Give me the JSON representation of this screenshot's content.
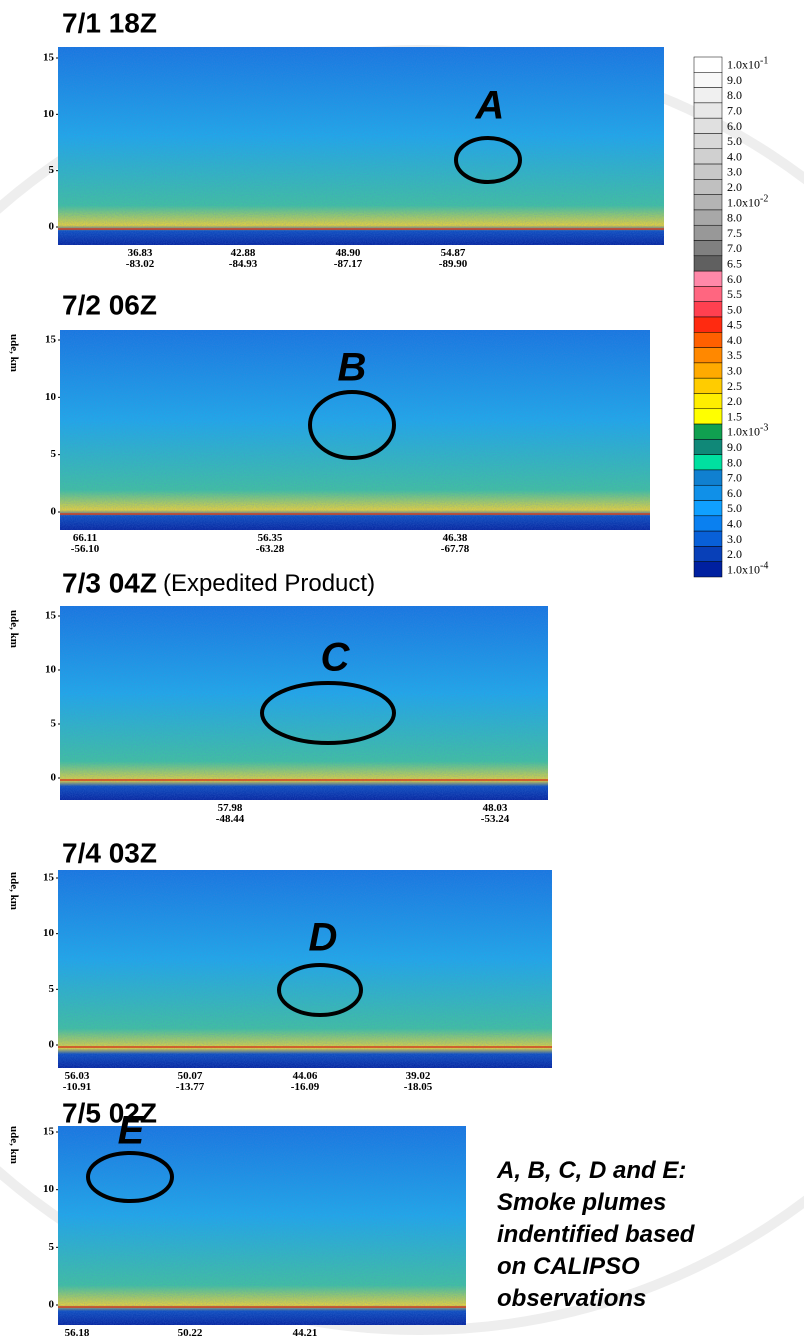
{
  "panels": [
    {
      "title": "7/1 18Z",
      "yticks": [
        0,
        5,
        10,
        15
      ],
      "xticks": [
        {
          "lat": "36.83",
          "lon": "-83.02"
        },
        {
          "lat": "42.88",
          "lon": "-84.93"
        },
        {
          "lat": "48.90",
          "lon": "-87.17"
        },
        {
          "lat": "54.87",
          "lon": "-89.90"
        }
      ],
      "plume": "A"
    },
    {
      "title": "7/2 06Z",
      "axis_label": "ude, km",
      "yticks": [
        0,
        5,
        10,
        15
      ],
      "xticks": [
        {
          "lat": "66.11",
          "lon": "-56.10"
        },
        {
          "lat": "56.35",
          "lon": "-63.28"
        },
        {
          "lat": "46.38",
          "lon": "-67.78"
        }
      ],
      "plume": "B"
    },
    {
      "title": "7/3 04Z",
      "title_note": "(Expedited Product)",
      "axis_label": "ude, km",
      "yticks": [
        0,
        5,
        10,
        15
      ],
      "xticks": [
        {
          "lat": "57.98",
          "lon": "-48.44"
        },
        {
          "lat": "48.03",
          "lon": "-53.24"
        }
      ],
      "plume": "C"
    },
    {
      "title": "7/4 03Z",
      "axis_label": "ude, km",
      "yticks": [
        0,
        5,
        10,
        15
      ],
      "xticks": [
        {
          "lat": "56.03",
          "lon": "-10.91"
        },
        {
          "lat": "50.07",
          "lon": "-13.77"
        },
        {
          "lat": "44.06",
          "lon": "-16.09"
        },
        {
          "lat": "39.02",
          "lon": "-18.05"
        }
      ],
      "plume": "D"
    },
    {
      "title": "7/5 02Z",
      "axis_label": "ude, km",
      "yticks": [
        0,
        5,
        10,
        15
      ],
      "xticks": [
        {
          "lat": "56.18"
        },
        {
          "lat": "50.22"
        },
        {
          "lat": "44.21"
        }
      ],
      "plume": "E"
    }
  ],
  "colorbar": [
    {
      "text": "1.0x10",
      "sup": "-1",
      "color": "#ffffff"
    },
    {
      "text": "9.0",
      "color": "#f8f8f8"
    },
    {
      "text": "8.0",
      "color": "#f0f0f0"
    },
    {
      "text": "7.0",
      "color": "#e8e8e8"
    },
    {
      "text": "6.0",
      "color": "#e0e0e0"
    },
    {
      "text": "5.0",
      "color": "#d8d8d8"
    },
    {
      "text": "4.0",
      "color": "#d0d0d0"
    },
    {
      "text": "3.0",
      "color": "#c8c8c8"
    },
    {
      "text": "2.0",
      "color": "#c0c0c0"
    },
    {
      "text": "1.0x10",
      "sup": "-2",
      "color": "#b4b4b4"
    },
    {
      "text": "8.0",
      "color": "#a8a8a8"
    },
    {
      "text": "7.5",
      "color": "#989898"
    },
    {
      "text": "7.0",
      "color": "#808080"
    },
    {
      "text": "6.5",
      "color": "#606060"
    },
    {
      "text": "6.0",
      "color": "#ff88a8"
    },
    {
      "text": "5.5",
      "color": "#ff6680"
    },
    {
      "text": "5.0",
      "color": "#ff4050"
    },
    {
      "text": "4.5",
      "color": "#ff2a10"
    },
    {
      "text": "4.0",
      "color": "#ff6000"
    },
    {
      "text": "3.5",
      "color": "#ff8800"
    },
    {
      "text": "3.0",
      "color": "#ffaa00"
    },
    {
      "text": "2.5",
      "color": "#ffcc00"
    },
    {
      "text": "2.0",
      "color": "#ffee00"
    },
    {
      "text": "1.5",
      "color": "#ffff00"
    },
    {
      "text": "1.0x10",
      "sup": "-3",
      "color": "#10a050"
    },
    {
      "text": "9.0",
      "color": "#108878"
    },
    {
      "text": "8.0",
      "color": "#00e0a0"
    },
    {
      "text": "7.0",
      "color": "#1080d0"
    },
    {
      "text": "6.0",
      "color": "#1090e8"
    },
    {
      "text": "5.0",
      "color": "#10a0ff"
    },
    {
      "text": "4.0",
      "color": "#0a80f0"
    },
    {
      "text": "3.0",
      "color": "#0860d8"
    },
    {
      "text": "2.0",
      "color": "#0840b8"
    },
    {
      "text": "1.0x10",
      "sup": "-4",
      "color": "#0020a0"
    }
  ],
  "caption": [
    "A, B, C, D and E:",
    "Smoke plumes",
    "indentified based",
    "on CALIPSO",
    "observations"
  ]
}
